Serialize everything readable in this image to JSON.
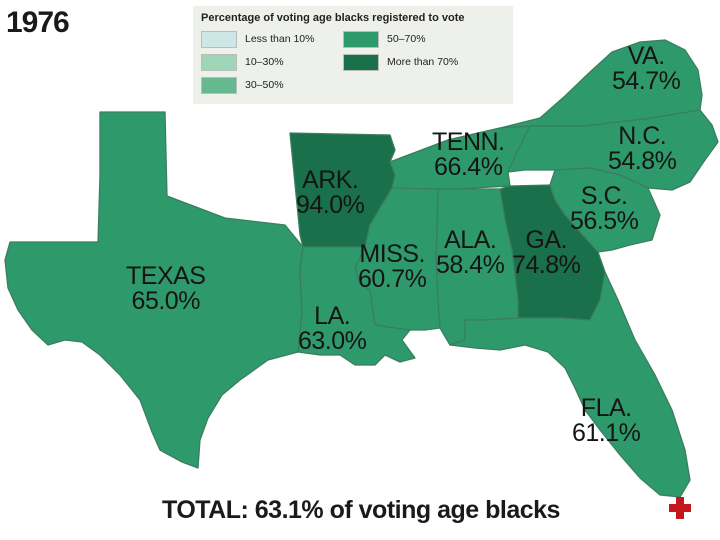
{
  "year": "1976",
  "legend": {
    "title": "Percentage of voting age blacks registered to vote",
    "items": [
      {
        "label": "Less than 10%",
        "color": "#cde7e6"
      },
      {
        "label": "50–70%",
        "color": "#2e9a6b"
      },
      {
        "label": "10–30%",
        "color": "#9fd6b8"
      },
      {
        "label": "More than 70%",
        "color": "#19704a"
      },
      {
        "label": "30–50%",
        "color": "#66b98f"
      }
    ]
  },
  "states": {
    "va": {
      "name": "VA.",
      "pct": "54.7%",
      "color": "#2e9a6b"
    },
    "nc": {
      "name": "N.C.",
      "pct": "54.8%",
      "color": "#2e9a6b"
    },
    "tenn": {
      "name": "TENN.",
      "pct": "66.4%",
      "color": "#2e9a6b"
    },
    "sc": {
      "name": "S.C.",
      "pct": "56.5%",
      "color": "#2e9a6b"
    },
    "ark": {
      "name": "ARK.",
      "pct": "94.0%",
      "color": "#19704a"
    },
    "ga": {
      "name": "GA.",
      "pct": "74.8%",
      "color": "#19704a"
    },
    "ala": {
      "name": "ALA.",
      "pct": "58.4%",
      "color": "#2e9a6b"
    },
    "miss": {
      "name": "MISS.",
      "pct": "60.7%",
      "color": "#2e9a6b"
    },
    "texas": {
      "name": "TEXAS",
      "pct": "65.0%",
      "color": "#2e9a6b"
    },
    "la": {
      "name": "LA.",
      "pct": "63.0%",
      "color": "#2e9a6b"
    },
    "fla": {
      "name": "FLA.",
      "pct": "61.1%",
      "color": "#2e9a6b"
    }
  },
  "total": "TOTAL: 63.1% of voting age blacks",
  "nav_icon": "red-cross-icon",
  "nav_icon_color": "#c4161c"
}
